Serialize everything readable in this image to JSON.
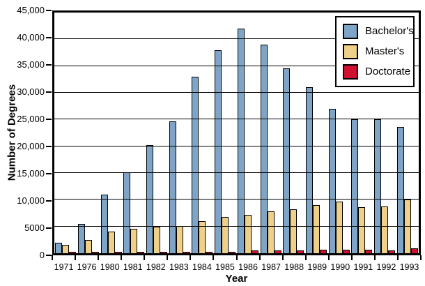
{
  "figure": {
    "background": "#ffffff",
    "frame_color": "#000000"
  },
  "chart_data": {
    "type": "bar",
    "title": "",
    "xlabel": "Year",
    "ylabel": "Number of Degrees",
    "ylim": [
      0,
      45000
    ],
    "ytick_interval": 5000,
    "ytick_labels": [
      "0",
      "5000",
      "10,000",
      "15,000",
      "20,000",
      "25,000",
      "30,000",
      "35,000",
      "40,000",
      "45,000"
    ],
    "grid": "horizontal",
    "legend_position": "top-right",
    "categories": [
      "1971",
      "1976",
      "1980",
      "1981",
      "1982",
      "1983",
      "1984",
      "1985",
      "1986",
      "1987",
      "1988",
      "1989",
      "1990",
      "1991",
      "1992",
      "1993"
    ],
    "series": [
      {
        "name": "Bachelor's",
        "color": "#7EA5C8",
        "values": [
          1900,
          5500,
          11000,
          15100,
          20200,
          24600,
          33000,
          38000,
          42000,
          39000,
          34500,
          31000,
          27000,
          25100,
          25000,
          23600
        ]
      },
      {
        "name": "Master's",
        "color": "#EFD089",
        "values": [
          1600,
          2500,
          4000,
          4500,
          5000,
          5100,
          6000,
          6800,
          7200,
          7800,
          8200,
          9000,
          9700,
          8600,
          8700,
          10100
        ]
      },
      {
        "name": "Doctorate",
        "color": "#CF1030",
        "values": [
          250,
          250,
          250,
          250,
          250,
          300,
          300,
          300,
          500,
          500,
          550,
          600,
          600,
          600,
          550,
          900
        ]
      }
    ]
  }
}
